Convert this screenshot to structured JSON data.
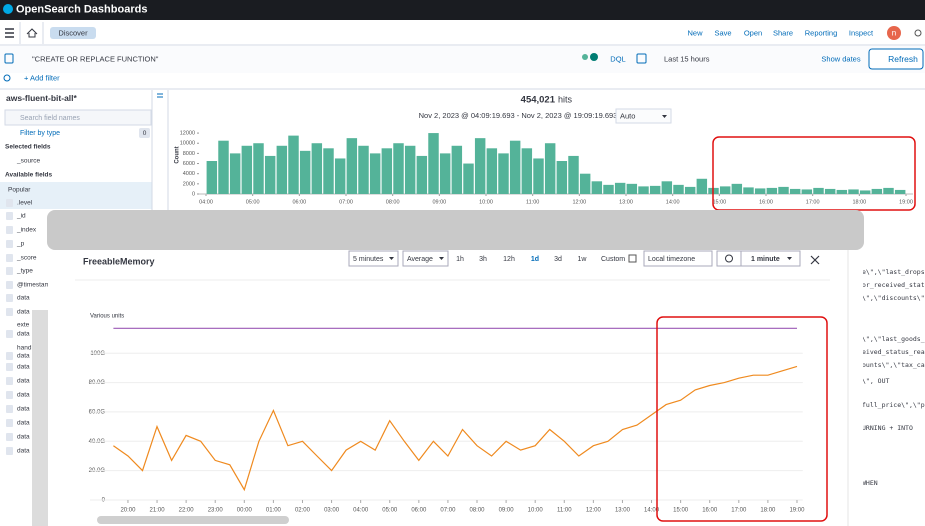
{
  "header": {
    "brand": "OpenSearch Dashboards",
    "tab": "Discover",
    "menu": [
      "New",
      "Save",
      "Open",
      "Share",
      "Reporting",
      "Inspect"
    ],
    "avatar": "n"
  },
  "query": {
    "text": "\"CREATE OR REPLACE FUNCTION\"",
    "language": "DQL",
    "time_range": "Last 15 hours",
    "show_dates": "Show dates",
    "refresh": "Refresh",
    "add_filter": "+ Add filter"
  },
  "sidebar": {
    "index_pattern": "aws-fluent-bit-all*",
    "search_placeholder": "Search field names",
    "filter_by_type": "Filter by type",
    "filter_count": 0,
    "selected_heading": "Selected fields",
    "selected": [
      "_source"
    ],
    "available_heading": "Available fields",
    "popular_heading": "Popular",
    "fields": [
      ".level",
      "_id",
      "_index",
      "_p",
      "_score",
      "_type",
      "@timestam",
      "data",
      "data",
      "exte",
      "data",
      "hand",
      "data",
      "data",
      "data",
      "data",
      "data",
      "data",
      "data",
      "data"
    ]
  },
  "discover": {
    "hits": "454,021",
    "hits_label": "hits",
    "date_range": "Nov 2, 2023 @ 04:09:19.693 - Nov 2, 2023 @ 19:09:19.693",
    "interval": "Auto"
  },
  "modal": {
    "period": "5 minutes",
    "statistic": "Average",
    "ranges": [
      "1h",
      "3h",
      "12h",
      "1d",
      "3d",
      "1w"
    ],
    "custom": "Custom",
    "timezone": "Local timezone",
    "refresh_interval": "1 minute"
  },
  "documents": [
    "e\\\",\\\"last_dropsh",
    "or_received_statu",
    "\\\",\\\"discounts\\\",\\\"",
    "\\\",\\\"last_goods_r",
    "eived_status_rea",
    "ounts\\\",\\\"tax_cal",
    "\\\", OUT",
    "full_price\\\",\\\"pr",
    "URNING + INTO",
    "WHEN"
  ],
  "chart_data": [
    {
      "type": "histogram",
      "y_label": "Count",
      "color": "#54b399",
      "bins": [
        4,
        4.25,
        4.5,
        4.75,
        5,
        5.25,
        5.5,
        5.75,
        6,
        6.25,
        6.5,
        6.75,
        7,
        7.25,
        7.5,
        7.75,
        8,
        8.25,
        8.5,
        8.75,
        9,
        9.25,
        9.5,
        9.75,
        10,
        10.25,
        10.5,
        10.75,
        11,
        11.25,
        11.5,
        11.75,
        12,
        12.25,
        12.5,
        12.75,
        13,
        13.25,
        13.5,
        13.75,
        14,
        14.25,
        14.5,
        14.75,
        15,
        15.25,
        15.5,
        15.75,
        16,
        16.25,
        16.5,
        16.75,
        17,
        17.25,
        17.5,
        17.75,
        18,
        18.25,
        18.5,
        18.75,
        19
      ],
      "values": [
        6500,
        10500,
        8000,
        9500,
        10000,
        7500,
        9500,
        11500,
        8500,
        10000,
        9000,
        7000,
        11000,
        9500,
        8000,
        9000,
        10000,
        9500,
        7500,
        12000,
        8000,
        9500,
        6000,
        11000,
        9000,
        8000,
        10500,
        9000,
        7000,
        10000,
        6500,
        7500,
        4000,
        2500,
        1800,
        2200,
        2000,
        1500,
        1600,
        2500,
        1800,
        1400,
        3000,
        1200,
        1500,
        2000,
        1300,
        1100,
        1200,
        1400,
        1000,
        900,
        1200,
        1000,
        800,
        900,
        700,
        1000,
        1200,
        800
      ],
      "xlim": [
        3.85,
        19.15
      ],
      "xticks": [
        {
          "value": 4,
          "label": "04:00"
        },
        {
          "value": 5,
          "label": "05:00"
        },
        {
          "value": 6,
          "label": "06:00"
        },
        {
          "value": 7,
          "label": "07:00"
        },
        {
          "value": 8,
          "label": "08:00"
        },
        {
          "value": 9,
          "label": "09:00"
        },
        {
          "value": 10,
          "label": "10:00"
        },
        {
          "value": 11,
          "label": "11:00"
        },
        {
          "value": 12,
          "label": "12:00"
        },
        {
          "value": 13,
          "label": "13:00"
        },
        {
          "value": 14,
          "label": "14:00"
        },
        {
          "value": 15,
          "label": "15:00"
        },
        {
          "value": 16,
          "label": "16:00"
        },
        {
          "value": 17,
          "label": "17:00"
        },
        {
          "value": 18,
          "label": "18:00"
        },
        {
          "value": 19,
          "label": "19:00"
        }
      ],
      "ylim": [
        0,
        13000
      ],
      "yticks": [
        0,
        2000,
        4000,
        6000,
        8000,
        10000,
        12000
      ]
    },
    {
      "type": "line",
      "title": "FreeableMemory",
      "y_label": "Various units",
      "grid": true,
      "x": [
        19.5,
        20,
        20.5,
        21,
        21.5,
        22,
        22.5,
        23,
        23.5,
        24,
        24.5,
        25,
        25.5,
        26,
        26.5,
        27,
        27.5,
        28,
        28.5,
        29,
        29.5,
        30,
        30.5,
        31,
        31.5,
        32,
        32.5,
        33,
        33.5,
        34,
        34.5,
        35,
        35.5,
        36,
        36.5,
        37,
        37.5,
        38,
        38.5,
        39,
        39.5,
        40,
        40.5,
        41,
        41.5,
        42,
        42.5,
        43
      ],
      "series": [
        {
          "color": "#9b59b6",
          "values": [
            117,
            117,
            117,
            117,
            117,
            117,
            117,
            117,
            117,
            117,
            117,
            117,
            117,
            117,
            117,
            117,
            117,
            117,
            117,
            117,
            117,
            117,
            117,
            117,
            117,
            117,
            117,
            117,
            117,
            117,
            117,
            117,
            117,
            117,
            117,
            117,
            117,
            117,
            117,
            117,
            117,
            117,
            117,
            117,
            117,
            117,
            117,
            117
          ]
        },
        {
          "color": "#ef8a1f",
          "values": [
            37,
            30,
            20,
            50,
            27,
            44,
            40,
            27,
            24,
            7,
            40,
            61,
            37,
            40,
            30,
            20,
            34,
            40,
            34,
            54,
            40,
            27,
            40,
            30,
            48,
            37,
            30,
            40,
            34,
            37,
            48,
            40,
            30,
            37,
            40,
            48,
            51,
            58,
            65,
            68,
            75,
            78,
            80,
            83,
            85,
            85,
            88,
            91
          ]
        }
      ],
      "xlim": [
        19.4,
        43.2
      ],
      "xticks": [
        {
          "value": 20,
          "label": "20:00"
        },
        {
          "value": 21,
          "label": "21:00"
        },
        {
          "value": 22,
          "label": "22:00"
        },
        {
          "value": 23,
          "label": "23:00"
        },
        {
          "value": 24,
          "label": "00:00"
        },
        {
          "value": 25,
          "label": "01:00"
        },
        {
          "value": 26,
          "label": "02:00"
        },
        {
          "value": 27,
          "label": "03:00"
        },
        {
          "value": 28,
          "label": "04:00"
        },
        {
          "value": 29,
          "label": "05:00"
        },
        {
          "value": 30,
          "label": "06:00"
        },
        {
          "value": 31,
          "label": "07:00"
        },
        {
          "value": 32,
          "label": "08:00"
        },
        {
          "value": 33,
          "label": "09:00"
        },
        {
          "value": 34,
          "label": "10:00"
        },
        {
          "value": 35,
          "label": "11:00"
        },
        {
          "value": 36,
          "label": "12:00"
        },
        {
          "value": 37,
          "label": "13:00"
        },
        {
          "value": 38,
          "label": "14:00"
        },
        {
          "value": 39,
          "label": "15:00"
        },
        {
          "value": 40,
          "label": "16:00"
        },
        {
          "value": 41,
          "label": "17:00"
        },
        {
          "value": 42,
          "label": "18:00"
        },
        {
          "value": 43,
          "label": "19:00"
        }
      ],
      "ylim": [
        0,
        124
      ],
      "yticks": [
        0,
        {
          "value": 20,
          "label": "20.0G"
        },
        {
          "value": 40,
          "label": "40.0G"
        },
        {
          "value": 60,
          "label": "60.0G"
        },
        {
          "value": 80,
          "label": "80.0G"
        },
        {
          "value": 100,
          "label": "100G"
        }
      ]
    }
  ]
}
